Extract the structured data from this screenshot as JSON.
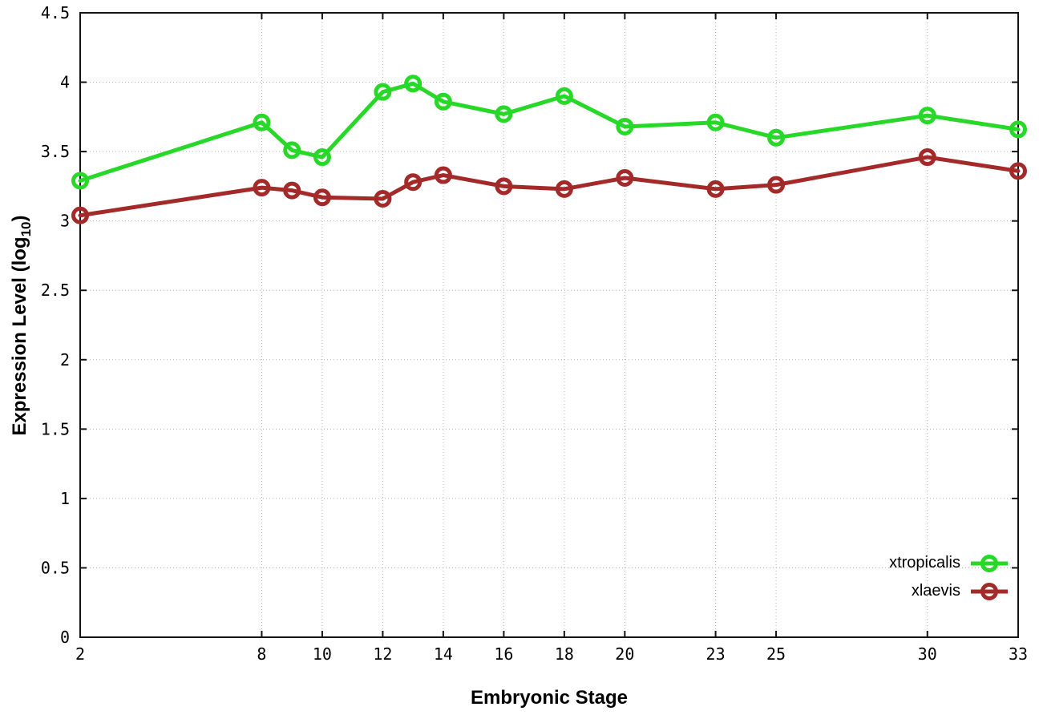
{
  "chart_data": {
    "type": "line",
    "title": "",
    "xlabel": "Embryonic Stage",
    "ylabel": "Expression Level (log10)",
    "ylabel_parts": {
      "prefix": "Expression Level (log",
      "sub": "10",
      "suffix": ")"
    },
    "x": [
      2,
      8,
      9,
      10,
      12,
      13,
      14,
      16,
      18,
      20,
      23,
      25,
      30,
      33
    ],
    "series": [
      {
        "name": "xtropicalis",
        "color": "#28d828",
        "values": [
          3.29,
          3.71,
          3.51,
          3.46,
          3.93,
          3.99,
          3.86,
          3.77,
          3.9,
          3.68,
          3.71,
          3.6,
          3.76,
          3.66
        ]
      },
      {
        "name": "xlaevis",
        "color": "#a42a2a",
        "values": [
          3.04,
          3.24,
          3.22,
          3.17,
          3.16,
          3.28,
          3.33,
          3.25,
          3.23,
          3.31,
          3.23,
          3.26,
          3.46,
          3.36
        ]
      }
    ],
    "xlim": [
      2,
      33
    ],
    "ylim": [
      0,
      4.5
    ],
    "x_ticks": [
      2,
      8,
      10,
      12,
      14,
      16,
      18,
      20,
      23,
      25,
      30,
      33
    ],
    "x_tick_labels": [
      "2",
      "8",
      "10",
      "12",
      "14",
      "16",
      "18",
      "20",
      "23",
      "25",
      "30",
      "33"
    ],
    "y_ticks": [
      0,
      0.5,
      1,
      1.5,
      2,
      2.5,
      3,
      3.5,
      4,
      4.5
    ],
    "y_tick_labels": [
      "0",
      "0.5",
      "1",
      "1.5",
      "2",
      "2.5",
      "3",
      "3.5",
      "4",
      "4.5"
    ],
    "grid": true,
    "grid_style": "dotted",
    "grid_color": "#b3b3b3",
    "border_color": "#141414",
    "marker": "open-circle",
    "legend_position": "bottom-right"
  }
}
